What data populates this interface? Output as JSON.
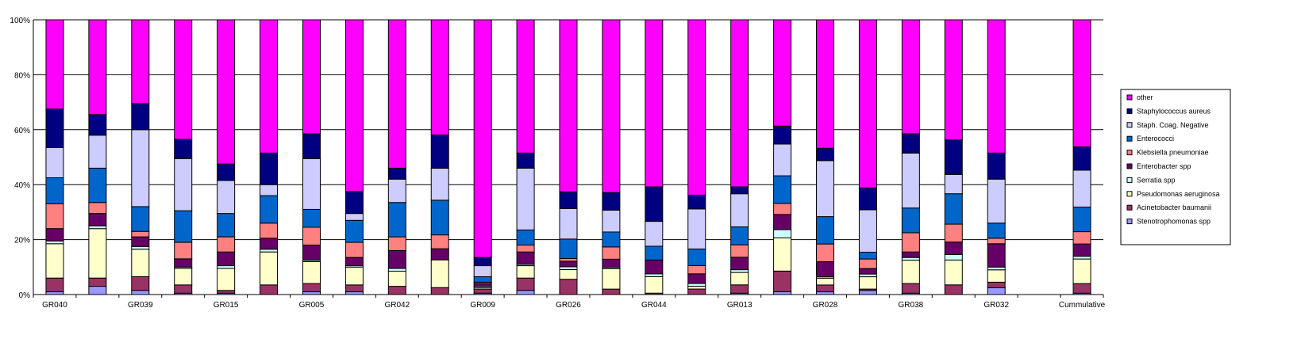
{
  "chart_data": {
    "type": "bar",
    "stacked": "percent",
    "title": "",
    "xlabel": "",
    "ylabel": "",
    "ylim": [
      0,
      100
    ],
    "yticks": [
      "0%",
      "20%",
      "40%",
      "60%",
      "80%",
      "100%"
    ],
    "grid": true,
    "legend": "right",
    "categories": [
      "GR040",
      "",
      "GR039",
      "",
      "GR015",
      "",
      "GR005",
      "",
      "GR042",
      "",
      "GR009",
      "",
      "GR026",
      "",
      "GR044",
      "",
      "GR013",
      "",
      "GR028",
      "",
      "GR038",
      "",
      "GR032",
      "",
      "Cummulative"
    ],
    "series": [
      {
        "name": "Stenotrophomonas spp",
        "color": "#9999FF",
        "values": [
          1,
          3,
          1.5,
          0.5,
          0.5,
          0,
          1,
          1,
          0,
          0,
          0.5,
          1.5,
          0,
          0,
          0,
          0,
          0.5,
          1,
          1,
          1.5,
          0.5,
          0,
          2.5,
          null,
          0.5
        ]
      },
      {
        "name": "Acinetobacter baumanii",
        "color": "#993366",
        "values": [
          5,
          3,
          5,
          3,
          1,
          3.5,
          3,
          2.5,
          3,
          2.5,
          1.5,
          4.5,
          5.5,
          2,
          0.5,
          2,
          3,
          7.5,
          2.5,
          0.5,
          3.5,
          3.5,
          2,
          null,
          3.5
        ]
      },
      {
        "name": "Pseudomonas aeruginosa",
        "color": "#FFFFCC",
        "values": [
          12.5,
          18,
          10,
          6,
          8,
          12,
          8,
          6.5,
          5.5,
          10,
          0.5,
          4.5,
          3.5,
          7.5,
          6,
          1,
          4.5,
          12,
          2.5,
          4.5,
          8.5,
          9,
          4.5,
          null,
          9
        ]
      },
      {
        "name": "Serratia spp",
        "color": "#CCFFFF",
        "values": [
          1,
          1,
          1,
          0.5,
          1,
          1,
          0.5,
          0.5,
          1,
          0,
          0.5,
          0.5,
          1,
          0.5,
          1,
          1,
          1,
          3,
          0.5,
          1,
          1,
          2,
          1,
          null,
          1
        ]
      },
      {
        "name": "Enterobacter spp",
        "color": "#660066",
        "values": [
          4.5,
          4.5,
          3.5,
          3,
          5,
          4,
          5.5,
          3,
          6.5,
          4,
          1,
          4.5,
          2,
          3,
          5,
          3.5,
          4.5,
          5.5,
          5.5,
          2,
          2,
          4.5,
          8.5,
          null,
          4.5
        ]
      },
      {
        "name": "Klebsiella pneumoniae",
        "color": "#FF8080",
        "values": [
          9,
          4,
          2,
          6,
          5.5,
          5.5,
          6.5,
          5.5,
          5,
          5,
          0.5,
          2.5,
          1,
          4.5,
          0,
          3,
          4.5,
          4,
          6.5,
          3.5,
          7,
          6.5,
          2,
          null,
          4.5
        ]
      },
      {
        "name": "Enterococci",
        "color": "#0066CC",
        "values": [
          9.5,
          12.5,
          9,
          11.5,
          8.5,
          10,
          6.5,
          8,
          12.5,
          12.5,
          2,
          5.5,
          7,
          5.5,
          5,
          6,
          6.5,
          10,
          10,
          2.5,
          9,
          11,
          5.5,
          null,
          9
        ]
      },
      {
        "name": "Staph. Coag. Negative",
        "color": "#CCCCFF",
        "values": [
          11,
          12,
          28,
          19,
          12,
          4,
          18.5,
          2.5,
          8.5,
          11.5,
          4,
          22.5,
          11,
          8,
          9,
          14.5,
          12,
          11.5,
          20.5,
          15.5,
          20,
          7,
          16,
          null,
          13.5
        ]
      },
      {
        "name": "Staphylococcus aureus",
        "color": "#000080",
        "values": [
          14,
          7.5,
          9.5,
          7,
          6,
          11.5,
          9,
          8,
          4,
          12,
          3,
          5.5,
          6,
          6.5,
          12.5,
          5,
          2.5,
          6.5,
          4.5,
          8,
          7,
          12.5,
          9.5,
          null,
          8.5
        ]
      },
      {
        "name": "other",
        "color": "#FF00FF",
        "values": [
          32.5,
          34.5,
          30.5,
          43.5,
          52.5,
          48.5,
          41.5,
          62.5,
          54,
          41.5,
          86.5,
          48.5,
          62,
          63.5,
          60.5,
          63.5,
          60.5,
          38.5,
          47,
          61.5,
          41.5,
          43.5,
          48.5,
          null,
          46.5
        ]
      }
    ]
  }
}
